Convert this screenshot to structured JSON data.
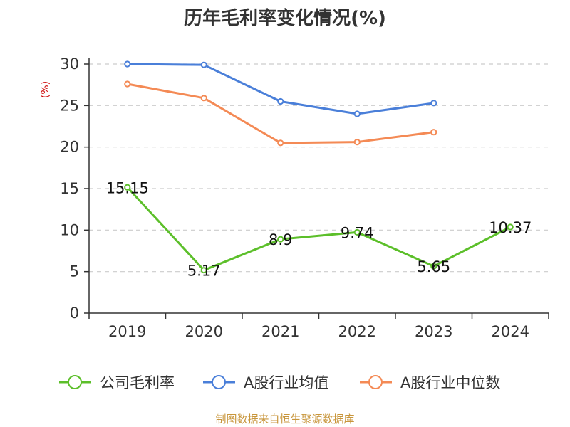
{
  "chart_data": {
    "type": "line",
    "title": "历年毛利率变化情况(%)",
    "ylabel": "(%)",
    "xlabel": "",
    "categories": [
      "2019",
      "2020",
      "2021",
      "2022",
      "2023",
      "2024"
    ],
    "ylim": [
      0,
      30
    ],
    "yticks": [
      "0",
      "5",
      "10",
      "15",
      "20",
      "25",
      "30"
    ],
    "grid": true,
    "legend_position": "bottom",
    "series": [
      {
        "name": "公司毛利率",
        "color": "#5cbf2a",
        "values": [
          15.15,
          5.17,
          8.9,
          9.74,
          5.65,
          10.37
        ],
        "labels": [
          "15.15",
          "5.17",
          "8.9",
          "9.74",
          "5.65",
          "10.37"
        ]
      },
      {
        "name": "A股行业均值",
        "color": "#4a7fd9",
        "values": [
          30.0,
          29.9,
          25.5,
          24.0,
          25.3,
          null
        ]
      },
      {
        "name": "A股行业中位数",
        "color": "#f48a55",
        "values": [
          27.6,
          25.9,
          20.5,
          20.6,
          21.8,
          null
        ]
      }
    ]
  },
  "source": "制图数据来自恒生聚源数据库"
}
